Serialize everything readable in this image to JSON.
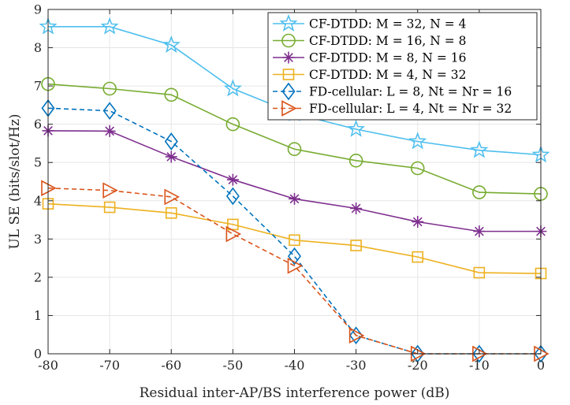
{
  "chart_data": {
    "type": "line",
    "title": "",
    "xlabel": "Residual inter-AP/BS interference power (dB)",
    "ylabel": "UL SE (bits/slot/Hz)",
    "xlim": [
      -80,
      0
    ],
    "ylim": [
      0,
      9
    ],
    "xticks": [
      "-80",
      "-70",
      "-60",
      "-50",
      "-40",
      "-30",
      "-20",
      "-10",
      "0"
    ],
    "yticks": [
      "0",
      "1",
      "2",
      "3",
      "4",
      "5",
      "6",
      "7",
      "8",
      "9"
    ],
    "grid": true,
    "legend_position": "top-right",
    "x": [
      -80,
      -70,
      -60,
      -50,
      -40,
      -30,
      -20,
      -10,
      0
    ],
    "series": [
      {
        "name": "CF-DTDD: M = 32, N = 4",
        "color": "#4DBEEE",
        "marker": "star",
        "dashed": false,
        "values": [
          8.55,
          8.55,
          8.07,
          6.93,
          6.28,
          5.87,
          5.55,
          5.32,
          5.2
        ]
      },
      {
        "name": "CF-DTDD: M = 16, N = 8",
        "color": "#77AC30",
        "marker": "circle",
        "dashed": false,
        "values": [
          7.05,
          6.93,
          6.77,
          6.0,
          5.35,
          5.05,
          4.85,
          4.22,
          4.18
        ]
      },
      {
        "name": "CF-DTDD: M = 8, N = 16",
        "color": "#7E2F8E",
        "marker": "asterisk",
        "dashed": false,
        "values": [
          5.83,
          5.82,
          5.15,
          4.55,
          4.05,
          3.8,
          3.45,
          3.2,
          3.2
        ]
      },
      {
        "name": "CF-DTDD: M = 4, N = 32",
        "color": "#EDB120",
        "marker": "square",
        "dashed": false,
        "values": [
          3.92,
          3.83,
          3.68,
          3.38,
          2.97,
          2.83,
          2.53,
          2.12,
          2.1
        ]
      },
      {
        "name": "FD-cellular: L = 8, Nt = Nr = 16",
        "color": "#0072BD",
        "marker": "diamond",
        "dashed": true,
        "values": [
          6.42,
          6.35,
          5.55,
          4.12,
          2.55,
          0.48,
          0.0,
          0.0,
          0.0
        ]
      },
      {
        "name": "FD-cellular: L = 4, Nt = Nr = 32",
        "color": "#D95319",
        "marker": "triangle-right",
        "dashed": true,
        "values": [
          4.33,
          4.27,
          4.1,
          3.13,
          2.3,
          0.48,
          0.0,
          0.0,
          0.0
        ]
      }
    ]
  }
}
